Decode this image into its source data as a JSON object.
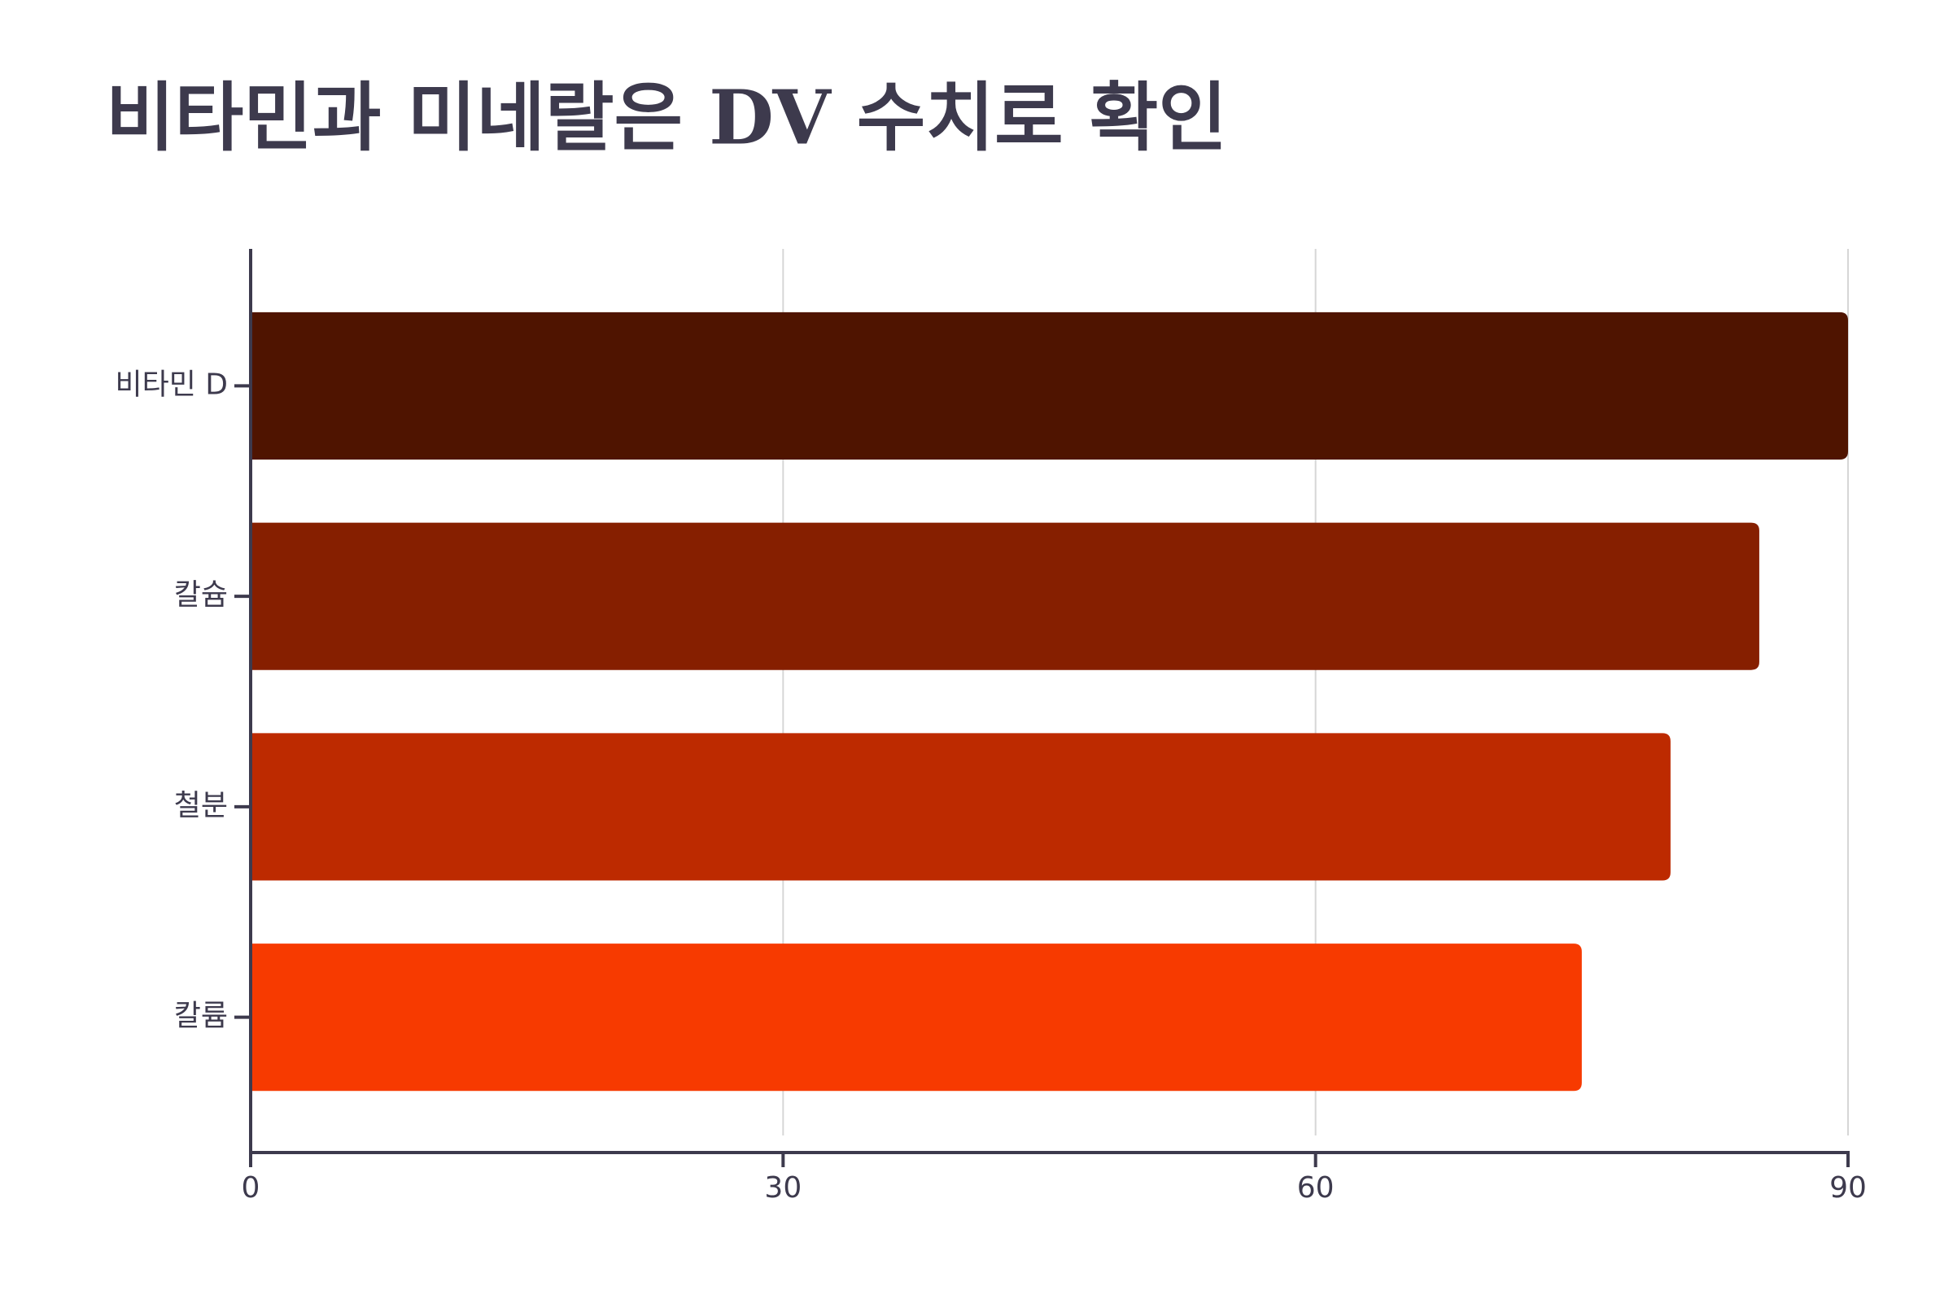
{
  "chart_data": {
    "type": "bar",
    "orientation": "horizontal",
    "title": "비타민과 미네랄은 DV 수치로 확인",
    "categories": [
      "비타민 D",
      "칼슘",
      "철분",
      "칼륨"
    ],
    "values": [
      90,
      85,
      80,
      75
    ],
    "colors": [
      "#4f1400",
      "#861f00",
      "#bd2a00",
      "#f73a00"
    ],
    "xlim": [
      0,
      90
    ],
    "xticks": [
      0,
      30,
      60,
      90
    ],
    "grid": true
  }
}
